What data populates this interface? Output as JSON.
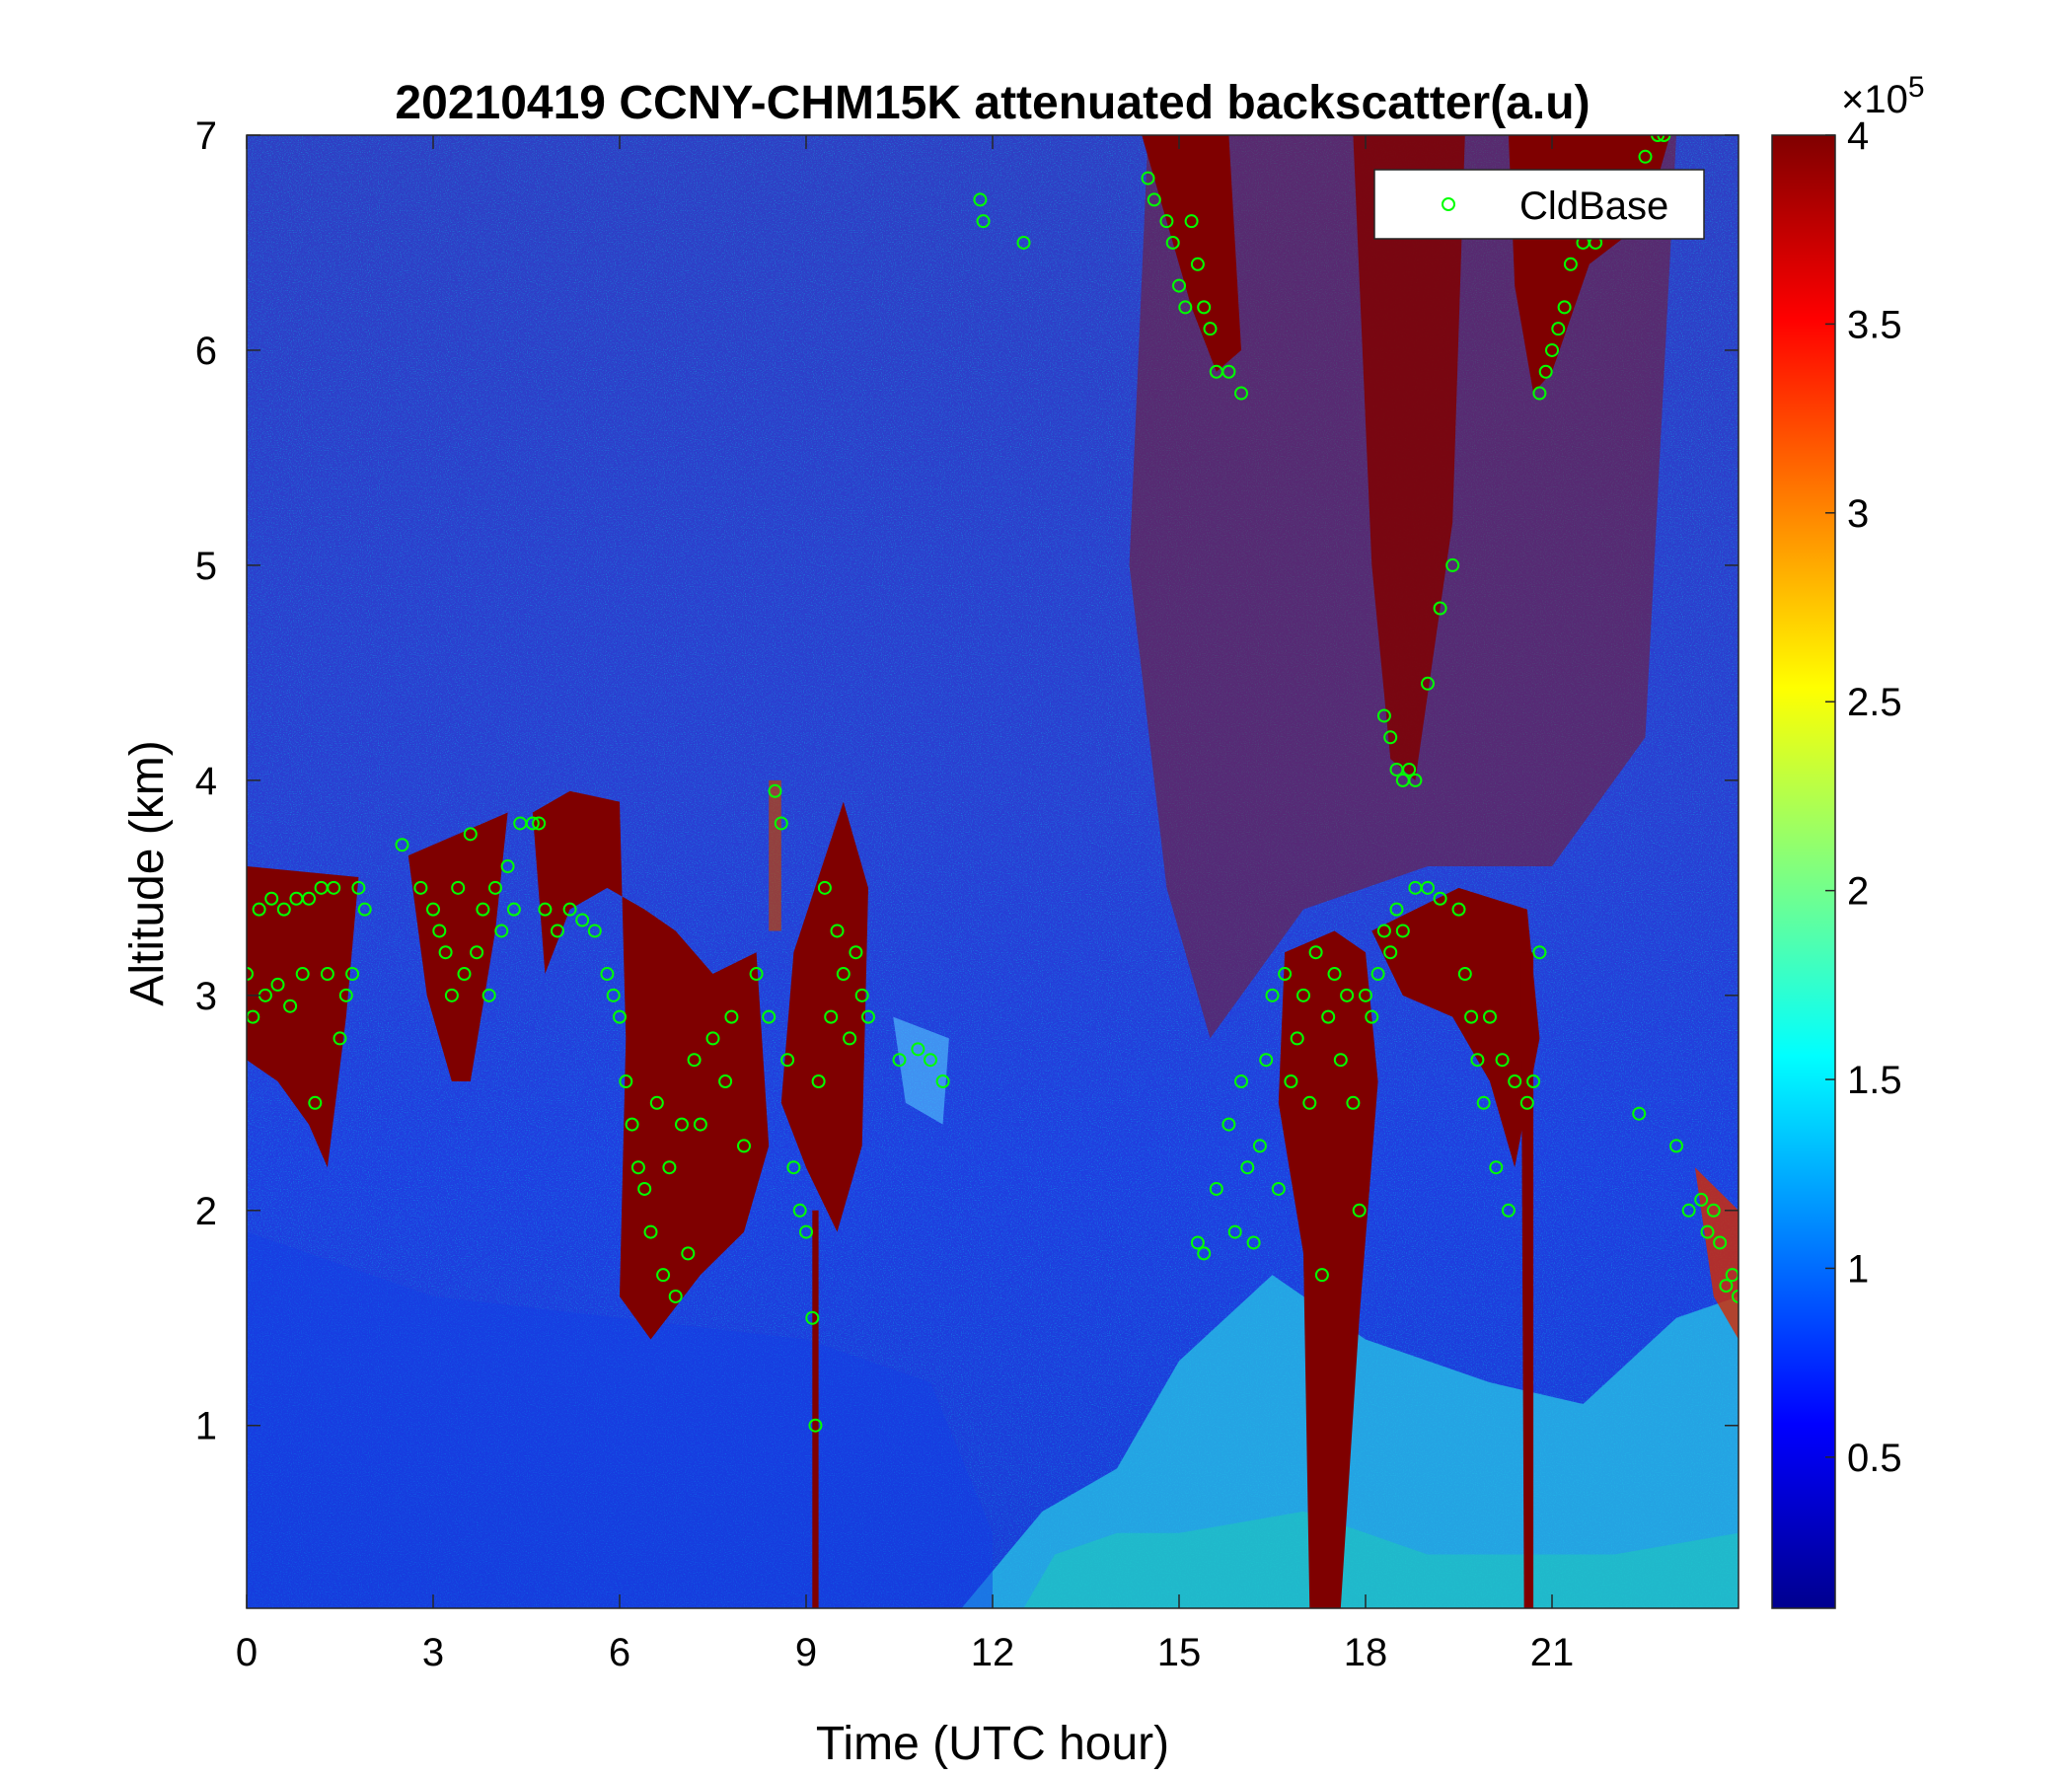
{
  "chart_data": {
    "type": "heatmap",
    "title": "20210419 CCNY-CHM15K attenuated backscatter(a.u)",
    "xlabel": "Time (UTC hour)",
    "ylabel": "Altitude (km)",
    "xlim": [
      0,
      24
    ],
    "ylim": [
      0.15,
      7
    ],
    "xticks": [
      "0",
      "3",
      "6",
      "9",
      "12",
      "15",
      "18",
      "21"
    ],
    "xtick_values": [
      0,
      3,
      6,
      9,
      12,
      15,
      18,
      21
    ],
    "yticks": [
      "1",
      "2",
      "3",
      "4",
      "5",
      "6",
      "7"
    ],
    "ytick_values": [
      1,
      2,
      3,
      4,
      5,
      6,
      7
    ],
    "colormap": "jet",
    "colorbar": {
      "range": [
        0.1,
        4
      ],
      "ticks": [
        "0.5",
        "1",
        "1.5",
        "2",
        "2.5",
        "3",
        "3.5",
        "4"
      ],
      "tick_values": [
        0.5,
        1,
        1.5,
        2,
        2.5,
        3,
        3.5,
        4
      ],
      "exponent_label": "×10",
      "exponent_power": "5"
    },
    "legend": {
      "position": "top-right",
      "entries": [
        "CldBase"
      ]
    },
    "series": [
      {
        "name": "CldBase",
        "marker": "open-circle",
        "color": "#00ff00",
        "points": [
          [
            0.0,
            3.1
          ],
          [
            0.1,
            2.9
          ],
          [
            0.2,
            3.4
          ],
          [
            0.3,
            3.0
          ],
          [
            0.4,
            3.45
          ],
          [
            0.5,
            3.05
          ],
          [
            0.6,
            3.4
          ],
          [
            0.7,
            2.95
          ],
          [
            0.8,
            3.45
          ],
          [
            0.9,
            3.1
          ],
          [
            1.0,
            3.45
          ],
          [
            1.1,
            2.5
          ],
          [
            1.2,
            3.5
          ],
          [
            1.3,
            3.1
          ],
          [
            1.4,
            3.5
          ],
          [
            1.5,
            2.8
          ],
          [
            1.6,
            3.0
          ],
          [
            1.7,
            3.1
          ],
          [
            1.8,
            3.5
          ],
          [
            1.9,
            3.4
          ],
          [
            2.5,
            3.7
          ],
          [
            2.8,
            3.5
          ],
          [
            3.0,
            3.4
          ],
          [
            3.1,
            3.3
          ],
          [
            3.2,
            3.2
          ],
          [
            3.3,
            3.0
          ],
          [
            3.4,
            3.5
          ],
          [
            3.5,
            3.1
          ],
          [
            3.6,
            3.75
          ],
          [
            3.7,
            3.2
          ],
          [
            3.8,
            3.4
          ],
          [
            3.9,
            3.0
          ],
          [
            4.0,
            3.5
          ],
          [
            4.1,
            3.3
          ],
          [
            4.2,
            3.6
          ],
          [
            4.3,
            3.4
          ],
          [
            4.4,
            3.8
          ],
          [
            4.6,
            3.8
          ],
          [
            4.7,
            3.8
          ],
          [
            4.8,
            3.4
          ],
          [
            5.0,
            3.3
          ],
          [
            5.2,
            3.4
          ],
          [
            5.4,
            3.35
          ],
          [
            5.6,
            3.3
          ],
          [
            5.8,
            3.1
          ],
          [
            5.9,
            3.0
          ],
          [
            6.0,
            2.9
          ],
          [
            6.1,
            2.6
          ],
          [
            6.2,
            2.4
          ],
          [
            6.3,
            2.2
          ],
          [
            6.4,
            2.1
          ],
          [
            6.5,
            1.9
          ],
          [
            6.6,
            2.5
          ],
          [
            6.7,
            1.7
          ],
          [
            6.8,
            2.2
          ],
          [
            6.9,
            1.6
          ],
          [
            7.0,
            2.4
          ],
          [
            7.1,
            1.8
          ],
          [
            7.2,
            2.7
          ],
          [
            7.3,
            2.4
          ],
          [
            7.5,
            2.8
          ],
          [
            7.7,
            2.6
          ],
          [
            7.8,
            2.9
          ],
          [
            8.0,
            2.3
          ],
          [
            8.2,
            3.1
          ],
          [
            8.4,
            2.9
          ],
          [
            8.5,
            3.95
          ],
          [
            8.6,
            3.8
          ],
          [
            8.7,
            2.7
          ],
          [
            8.8,
            2.2
          ],
          [
            8.9,
            2.0
          ],
          [
            9.0,
            1.9
          ],
          [
            9.1,
            1.5
          ],
          [
            9.15,
            1.0
          ],
          [
            9.2,
            2.6
          ],
          [
            9.3,
            3.5
          ],
          [
            9.4,
            2.9
          ],
          [
            9.5,
            3.3
          ],
          [
            9.6,
            3.1
          ],
          [
            9.7,
            2.8
          ],
          [
            9.8,
            3.2
          ],
          [
            9.9,
            3.0
          ],
          [
            10.0,
            2.9
          ],
          [
            10.5,
            2.7
          ],
          [
            10.8,
            2.75
          ],
          [
            11.0,
            2.7
          ],
          [
            11.2,
            2.6
          ],
          [
            11.8,
            6.7
          ],
          [
            11.85,
            6.6
          ],
          [
            12.5,
            6.5
          ],
          [
            14.5,
            6.8
          ],
          [
            14.6,
            6.7
          ],
          [
            14.8,
            6.6
          ],
          [
            14.9,
            6.5
          ],
          [
            15.0,
            6.3
          ],
          [
            15.1,
            6.2
          ],
          [
            15.2,
            6.6
          ],
          [
            15.3,
            6.4
          ],
          [
            15.4,
            6.2
          ],
          [
            15.5,
            6.1
          ],
          [
            15.6,
            5.9
          ],
          [
            15.8,
            5.9
          ],
          [
            16.0,
            5.8
          ],
          [
            15.3,
            1.85
          ],
          [
            15.4,
            1.8
          ],
          [
            15.6,
            2.1
          ],
          [
            15.8,
            2.4
          ],
          [
            15.9,
            1.9
          ],
          [
            16.0,
            2.6
          ],
          [
            16.1,
            2.2
          ],
          [
            16.2,
            1.85
          ],
          [
            16.3,
            2.3
          ],
          [
            16.4,
            2.7
          ],
          [
            16.5,
            3.0
          ],
          [
            16.6,
            2.1
          ],
          [
            16.7,
            3.1
          ],
          [
            16.8,
            2.6
          ],
          [
            16.9,
            2.8
          ],
          [
            17.0,
            3.0
          ],
          [
            17.1,
            2.5
          ],
          [
            17.2,
            3.2
          ],
          [
            17.3,
            1.7
          ],
          [
            17.4,
            2.9
          ],
          [
            17.5,
            3.1
          ],
          [
            17.6,
            2.7
          ],
          [
            17.7,
            3.0
          ],
          [
            17.8,
            2.5
          ],
          [
            17.9,
            2.0
          ],
          [
            18.0,
            3.0
          ],
          [
            18.1,
            2.9
          ],
          [
            18.2,
            3.1
          ],
          [
            18.3,
            3.3
          ],
          [
            18.4,
            3.2
          ],
          [
            18.5,
            3.4
          ],
          [
            18.6,
            3.3
          ],
          [
            18.8,
            3.5
          ],
          [
            19.0,
            3.5
          ],
          [
            19.2,
            3.45
          ],
          [
            19.5,
            3.4
          ],
          [
            18.3,
            4.3
          ],
          [
            18.4,
            4.2
          ],
          [
            18.5,
            4.05
          ],
          [
            18.6,
            4.0
          ],
          [
            18.7,
            4.05
          ],
          [
            18.8,
            4.0
          ],
          [
            19.0,
            4.45
          ],
          [
            19.2,
            4.8
          ],
          [
            19.4,
            5.0
          ],
          [
            19.6,
            3.1
          ],
          [
            19.7,
            2.9
          ],
          [
            19.8,
            2.7
          ],
          [
            19.9,
            2.5
          ],
          [
            20.0,
            2.9
          ],
          [
            20.1,
            2.2
          ],
          [
            20.2,
            2.7
          ],
          [
            20.3,
            2.0
          ],
          [
            20.4,
            2.6
          ],
          [
            20.6,
            2.5
          ],
          [
            20.7,
            2.6
          ],
          [
            20.8,
            3.2
          ],
          [
            20.8,
            5.8
          ],
          [
            20.9,
            5.9
          ],
          [
            21.0,
            6.0
          ],
          [
            21.1,
            6.1
          ],
          [
            21.2,
            6.2
          ],
          [
            21.3,
            6.4
          ],
          [
            21.5,
            6.5
          ],
          [
            21.7,
            6.5
          ],
          [
            21.9,
            6.6
          ],
          [
            22.1,
            6.55
          ],
          [
            22.3,
            6.8
          ],
          [
            22.5,
            6.9
          ],
          [
            22.7,
            7.0
          ],
          [
            22.8,
            7.0
          ],
          [
            22.4,
            2.45
          ],
          [
            23.0,
            2.3
          ],
          [
            23.2,
            2.0
          ],
          [
            23.4,
            2.05
          ],
          [
            23.5,
            1.9
          ],
          [
            23.6,
            2.0
          ],
          [
            23.7,
            1.85
          ],
          [
            23.8,
            1.65
          ],
          [
            23.9,
            1.7
          ],
          [
            24.0,
            1.6
          ]
        ]
      }
    ]
  }
}
